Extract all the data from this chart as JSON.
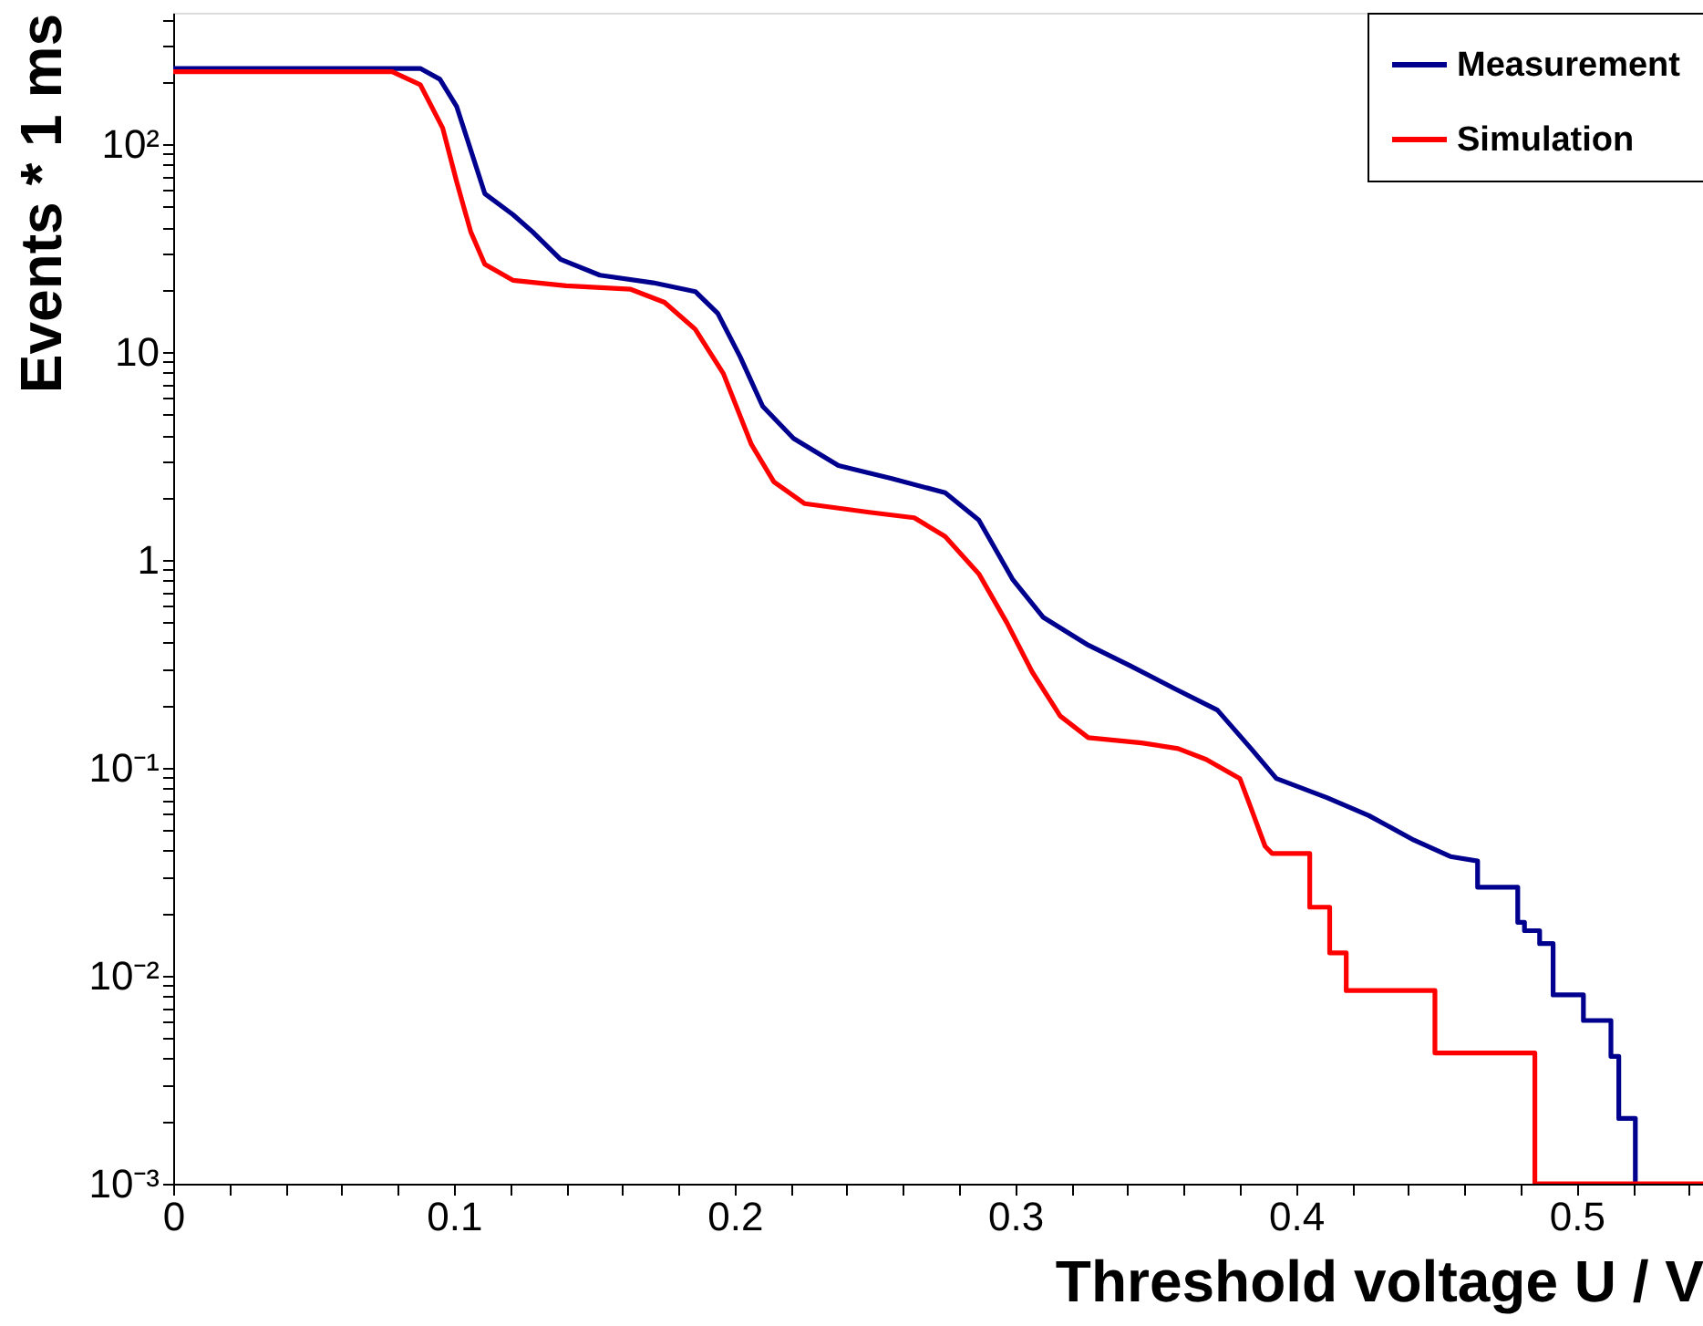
{
  "chart_data": {
    "type": "line",
    "xlabel": "Threshold voltage U / V",
    "ylabel": "Events * 1 ms",
    "log": "y",
    "grid": false,
    "legend": "top right",
    "line_style": "solid",
    "marker": "none",
    "xlim": [
      0,
      0.545
    ],
    "ylim": [
      0.001,
      430
    ],
    "xticks": [
      0,
      {
        "value": 0.02,
        "label": null
      },
      {
        "value": 0.04,
        "label": null
      },
      {
        "value": 0.06,
        "label": null
      },
      {
        "value": 0.08,
        "label": null
      },
      0.1,
      {
        "value": 0.12,
        "label": null
      },
      {
        "value": 0.14,
        "label": null
      },
      {
        "value": 0.16,
        "label": null
      },
      {
        "value": 0.18,
        "label": null
      },
      0.2,
      {
        "value": 0.22,
        "label": null
      },
      {
        "value": 0.24,
        "label": null
      },
      {
        "value": 0.26,
        "label": null
      },
      {
        "value": 0.28,
        "label": null
      },
      0.3,
      {
        "value": 0.32,
        "label": null
      },
      {
        "value": 0.34,
        "label": null
      },
      {
        "value": 0.36,
        "label": null
      },
      {
        "value": 0.38,
        "label": null
      },
      0.4,
      {
        "value": 0.42,
        "label": null
      },
      {
        "value": 0.44,
        "label": null
      },
      {
        "value": 0.46,
        "label": null
      },
      {
        "value": 0.48,
        "label": null
      },
      0.5,
      {
        "value": 0.52,
        "label": null
      },
      {
        "value": 0.54,
        "label": null
      }
    ],
    "yticks": [
      {
        "value": 0.001,
        "label": "10⁻³"
      },
      {
        "value": 0.002,
        "label": null
      },
      {
        "value": 0.003,
        "label": null
      },
      {
        "value": 0.004,
        "label": null
      },
      {
        "value": 0.005,
        "label": null
      },
      {
        "value": 0.006,
        "label": null
      },
      {
        "value": 0.007,
        "label": null
      },
      {
        "value": 0.008,
        "label": null
      },
      {
        "value": 0.009,
        "label": null
      },
      {
        "value": 0.01,
        "label": "10⁻²"
      },
      {
        "value": 0.02,
        "label": null
      },
      {
        "value": 0.03,
        "label": null
      },
      {
        "value": 0.04,
        "label": null
      },
      {
        "value": 0.05,
        "label": null
      },
      {
        "value": 0.06,
        "label": null
      },
      {
        "value": 0.07,
        "label": null
      },
      {
        "value": 0.08,
        "label": null
      },
      {
        "value": 0.09,
        "label": null
      },
      {
        "value": 0.1,
        "label": "10⁻¹"
      },
      {
        "value": 0.2,
        "label": null
      },
      {
        "value": 0.3,
        "label": null
      },
      {
        "value": 0.4,
        "label": null
      },
      {
        "value": 0.5,
        "label": null
      },
      {
        "value": 0.6,
        "label": null
      },
      {
        "value": 0.7,
        "label": null
      },
      {
        "value": 0.8,
        "label": null
      },
      {
        "value": 0.9,
        "label": null
      },
      1,
      {
        "value": 2,
        "label": null
      },
      {
        "value": 3,
        "label": null
      },
      {
        "value": 4,
        "label": null
      },
      {
        "value": 5,
        "label": null
      },
      {
        "value": 6,
        "label": null
      },
      {
        "value": 7,
        "label": null
      },
      {
        "value": 8,
        "label": null
      },
      {
        "value": 9,
        "label": null
      },
      10,
      {
        "value": 20,
        "label": null
      },
      {
        "value": 30,
        "label": null
      },
      {
        "value": 40,
        "label": null
      },
      {
        "value": 50,
        "label": null
      },
      {
        "value": 60,
        "label": null
      },
      {
        "value": 70,
        "label": null
      },
      {
        "value": 80,
        "label": null
      },
      {
        "value": 90,
        "label": null
      },
      {
        "value": 100,
        "label": "10²"
      },
      {
        "value": 200,
        "label": null
      },
      {
        "value": 300,
        "label": null
      },
      {
        "value": 400,
        "label": null
      }
    ],
    "series": [
      {
        "name": "Measurement",
        "color": "#00008f",
        "x": [
          0,
          0.088,
          0.095,
          0.101,
          0.106,
          0.111,
          0.121,
          0.128,
          0.138,
          0.152,
          0.171,
          0.186,
          0.194,
          0.202,
          0.21,
          0.221,
          0.237,
          0.256,
          0.275,
          0.287,
          0.299,
          0.31,
          0.326,
          0.341,
          0.357,
          0.372,
          0.384,
          0.393,
          0.411,
          0.426,
          0.442,
          0.455,
          0.4647,
          0.4647,
          0.479,
          0.479,
          0.4814,
          0.4814,
          0.4868,
          0.4868,
          0.4916,
          0.4916,
          0.5024,
          0.5024,
          0.5122,
          0.5122,
          0.515,
          0.515,
          0.5209,
          0.5209
        ],
        "values": [
          232,
          232,
          206,
          152,
          94,
          58,
          46,
          38,
          28,
          23.5,
          21.6,
          19.6,
          15.4,
          9.5,
          5.5,
          3.85,
          2.85,
          2.47,
          2.11,
          1.56,
          0.81,
          0.53,
          0.39,
          0.31,
          0.24,
          0.19,
          0.124,
          0.089,
          0.072,
          0.059,
          0.045,
          0.0375,
          0.0357,
          0.0267,
          0.0267,
          0.0181,
          0.0181,
          0.0165,
          0.0165,
          0.0143,
          0.0143,
          0.0081,
          0.0081,
          0.0061,
          0.0061,
          0.0041,
          0.0041,
          0.00206,
          0.00206,
          0.001
        ]
      },
      {
        "name": "Simulation",
        "color": "#ff0000",
        "x": [
          0,
          0.078,
          0.088,
          0.096,
          0.101,
          0.106,
          0.111,
          0.121,
          0.14,
          0.163,
          0.175,
          0.186,
          0.196,
          0.206,
          0.214,
          0.225,
          0.248,
          0.264,
          0.275,
          0.287,
          0.297,
          0.306,
          0.316,
          0.326,
          0.345,
          0.358,
          0.368,
          0.38,
          0.384,
          0.389,
          0.3915,
          0.4049,
          0.4049,
          0.412,
          0.412,
          0.4179,
          0.4179,
          0.4495,
          0.4495,
          0.4851,
          0.4851,
          0.545
        ],
        "values": [
          224,
          224,
          194,
          120,
          66,
          38,
          26.5,
          22.2,
          20.9,
          20.1,
          17.4,
          12.9,
          7.9,
          3.6,
          2.38,
          1.87,
          1.7,
          1.6,
          1.3,
          0.86,
          0.5,
          0.29,
          0.178,
          0.14,
          0.132,
          0.124,
          0.11,
          0.089,
          0.064,
          0.042,
          0.0388,
          0.0388,
          0.0214,
          0.0214,
          0.0129,
          0.0129,
          0.0085,
          0.0085,
          0.00426,
          0.00426,
          0.001,
          0.001
        ]
      }
    ]
  }
}
